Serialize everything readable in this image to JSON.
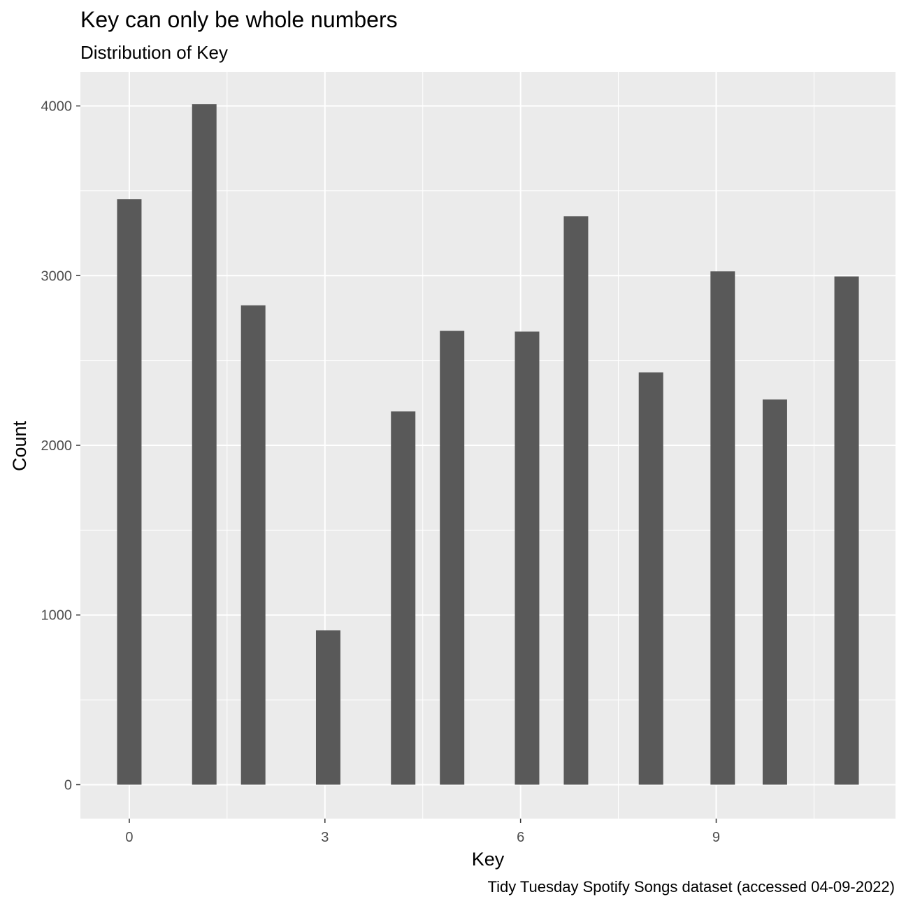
{
  "chart_data": {
    "type": "bar",
    "title": "Key can only be whole numbers",
    "subtitle": "Distribution of Key",
    "caption": "Tidy Tuesday Spotify Songs dataset (accessed 04-09-2022)",
    "xlabel": "Key",
    "ylabel": "Count",
    "x": [
      0,
      1,
      2,
      3,
      4,
      5,
      6,
      7,
      8,
      9,
      10,
      11
    ],
    "bar_centers": [
      0,
      1.15,
      1.9,
      3.05,
      4.2,
      4.95,
      6.1,
      6.85,
      8,
      9.1,
      9.9,
      11
    ],
    "values": [
      3450,
      4010,
      2825,
      910,
      2200,
      2675,
      2670,
      3350,
      2430,
      3025,
      2270,
      2995
    ],
    "xlim": [
      -0.75,
      11.75
    ],
    "ylim": [
      -200,
      4200
    ],
    "x_ticks": [
      0,
      3,
      6,
      9
    ],
    "y_ticks": [
      0,
      1000,
      2000,
      3000,
      4000
    ],
    "grid": true,
    "bar_color": "#595959",
    "panel_color": "#ebebeb"
  }
}
